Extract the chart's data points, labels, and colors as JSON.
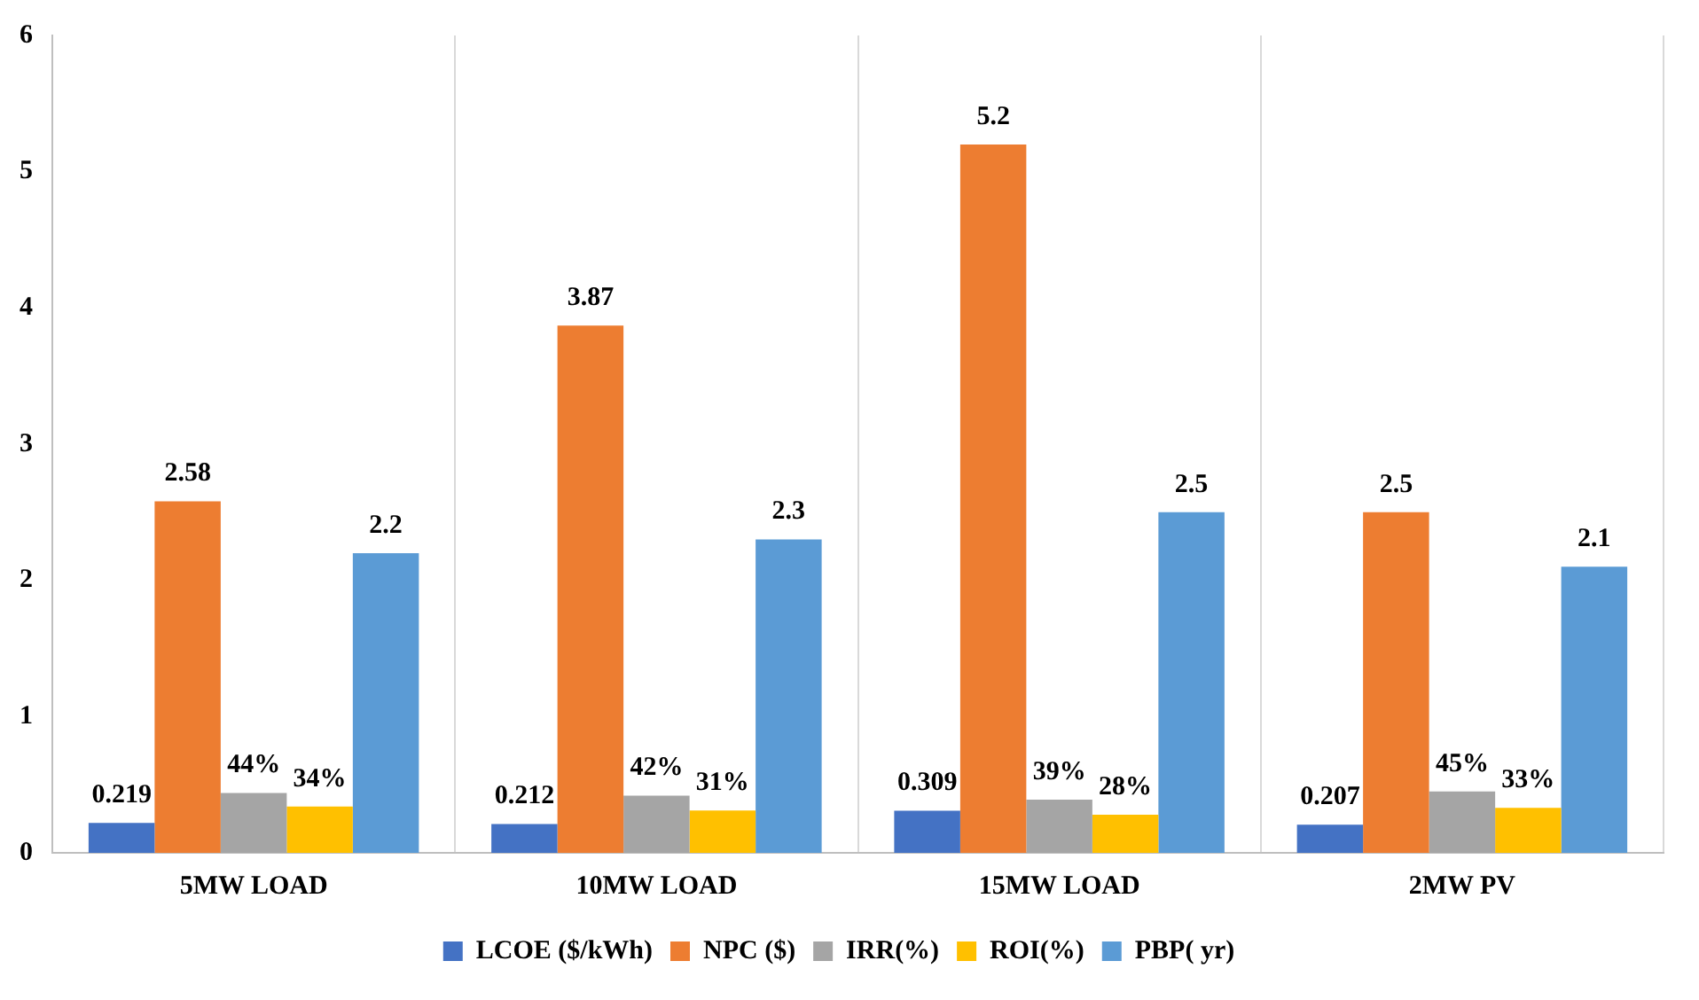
{
  "chart_data": {
    "type": "bar",
    "categories": [
      "5MW LOAD",
      "10MW LOAD",
      "15MW LOAD",
      "2MW PV"
    ],
    "series": [
      {
        "name": "LCOE ($/kWh)",
        "color": "#4472c4",
        "values": [
          0.219,
          0.212,
          0.309,
          0.207
        ],
        "value_labels": [
          "0.219",
          "0.212",
          "0.309",
          "0.207"
        ]
      },
      {
        "name": "NPC ($)",
        "color": "#ed7d31",
        "values": [
          2.58,
          3.87,
          5.2,
          2.5
        ],
        "value_labels": [
          "2.58",
          "3.87",
          "5.2",
          "2.5"
        ]
      },
      {
        "name": "IRR(%)",
        "color": "#a5a5a5",
        "values": [
          0.44,
          0.42,
          0.39,
          0.45
        ],
        "value_labels": [
          "44%",
          "42%",
          "39%",
          "45%"
        ]
      },
      {
        "name": "ROI(%)",
        "color": "#ffc000",
        "values": [
          0.34,
          0.31,
          0.28,
          0.33
        ],
        "value_labels": [
          "34%",
          "31%",
          "28%",
          "33%"
        ]
      },
      {
        "name": "PBP( yr)",
        "color": "#5b9bd5",
        "values": [
          2.2,
          2.3,
          2.5,
          2.1
        ],
        "value_labels": [
          "2.2",
          "2.3",
          "2.5",
          "2.1"
        ]
      }
    ],
    "ylim": [
      0,
      6
    ],
    "yticks": [
      0,
      1,
      2,
      3,
      4,
      5,
      6
    ],
    "grid": "x",
    "legend": "bottom"
  }
}
